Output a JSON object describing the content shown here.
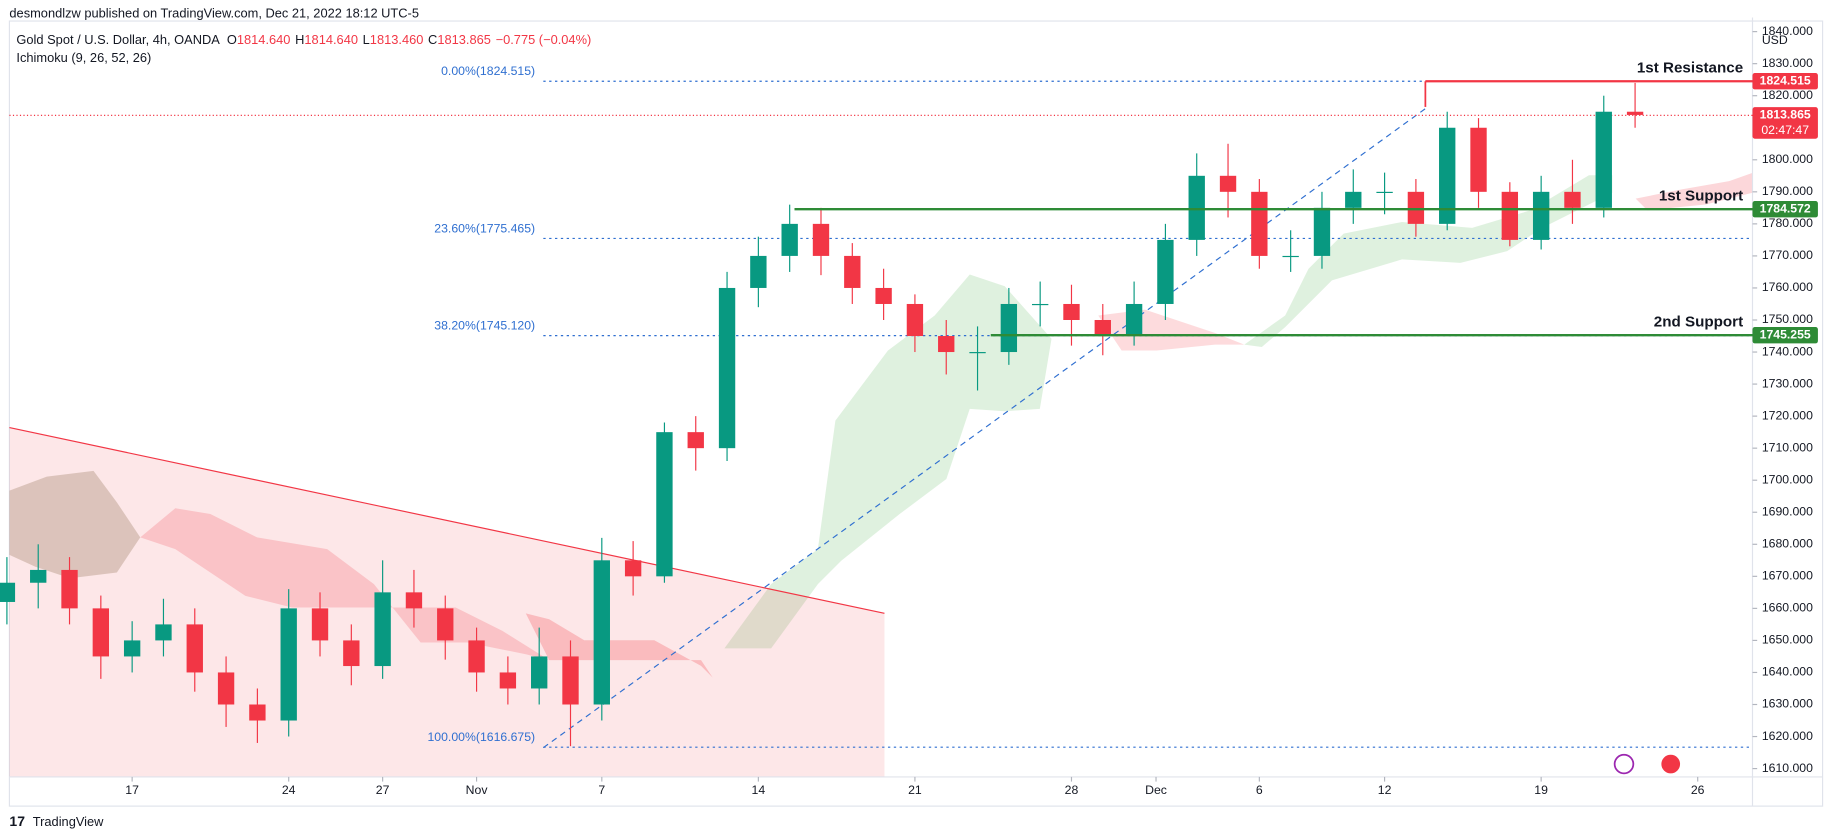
{
  "header": {
    "published": "desmondlzw published on TradingView.com, Dec 21, 2022 18:12 UTC-5",
    "symbol": "Gold Spot / U.S. Dollar, 4h, OANDA",
    "ohlc": [
      [
        "O",
        "1814.640"
      ],
      [
        "H",
        "1814.640"
      ],
      [
        "L",
        "1813.460"
      ],
      [
        "C",
        "1813.865"
      ]
    ],
    "change": "−0.775 (−0.04%)",
    "indicator": "Ichimoku (9, 26, 52, 26)",
    "currency": "USD"
  },
  "footer": {
    "brand": "TradingView"
  },
  "chart_data": {
    "type": "candlestick",
    "x": [
      -4,
      -3,
      -2,
      -1,
      0,
      1,
      2,
      3,
      4,
      5,
      6,
      7,
      8,
      9,
      10,
      11,
      12,
      13,
      14,
      15,
      16,
      17,
      18,
      19,
      20,
      21,
      22,
      23,
      24,
      25,
      26,
      27,
      28,
      29,
      30,
      31,
      32,
      33,
      34,
      35,
      36,
      37,
      38,
      39,
      40,
      41,
      42,
      43,
      44,
      45,
      46,
      47,
      48
    ],
    "open": [
      1662,
      1668,
      1672,
      1660,
      1645,
      1650,
      1655,
      1640,
      1630,
      1625,
      1660,
      1650,
      1642,
      1665,
      1660,
      1650,
      1640,
      1635,
      1645,
      1630,
      1675,
      1670,
      1715,
      1710,
      1760,
      1770,
      1780,
      1770,
      1760,
      1755,
      1745,
      1740,
      1740,
      1755,
      1755,
      1750,
      1745,
      1755,
      1775,
      1795,
      1790,
      1770,
      1770,
      1785,
      1790,
      1790,
      1780,
      1810,
      1790,
      1775,
      1790,
      1785,
      1815
    ],
    "high": [
      1676,
      1680,
      1676,
      1664,
      1656,
      1663,
      1660,
      1645,
      1635,
      1666,
      1665,
      1655,
      1675,
      1672,
      1664,
      1654,
      1645,
      1654,
      1650,
      1682,
      1681,
      1718,
      1720,
      1765,
      1776,
      1786,
      1785,
      1774,
      1766,
      1758,
      1750,
      1748,
      1760,
      1762,
      1761,
      1755,
      1762,
      1780,
      1802,
      1805,
      1794,
      1778,
      1790,
      1797,
      1796,
      1794,
      1815,
      1813,
      1793,
      1795,
      1800,
      1820,
      1824
    ],
    "low": [
      1655,
      1660,
      1655,
      1638,
      1640,
      1645,
      1634,
      1623,
      1618,
      1620,
      1645,
      1636,
      1638,
      1654,
      1644,
      1634,
      1630,
      1630,
      1617,
      1625,
      1664,
      1668,
      1703,
      1706,
      1754,
      1765,
      1764,
      1755,
      1750,
      1740,
      1733,
      1728,
      1736,
      1748,
      1742,
      1739,
      1742,
      1750,
      1770,
      1782,
      1766,
      1765,
      1766,
      1780,
      1783,
      1776,
      1778,
      1785,
      1773,
      1772,
      1780,
      1782,
      1810
    ],
    "close": [
      1668,
      1672,
      1660,
      1645,
      1650,
      1655,
      1640,
      1630,
      1625,
      1660,
      1650,
      1642,
      1665,
      1660,
      1650,
      1640,
      1635,
      1645,
      1630,
      1675,
      1670,
      1715,
      1710,
      1760,
      1770,
      1780,
      1770,
      1760,
      1755,
      1745,
      1740,
      1740,
      1755,
      1755,
      1750,
      1745,
      1755,
      1775,
      1795,
      1790,
      1770,
      1770,
      1785,
      1790,
      1790,
      1780,
      1810,
      1790,
      1775,
      1790,
      1785,
      1815,
      1814
    ],
    "up_color": "#089981",
    "down_color": "#f23645",
    "xlim": [
      -3.92,
      51.75
    ],
    "xticks": [
      {
        "value": 0,
        "label": "17"
      },
      {
        "value": 5,
        "label": "24"
      },
      {
        "value": 8,
        "label": "27"
      },
      {
        "value": 11,
        "label": "Nov"
      },
      {
        "value": 15,
        "label": "7"
      },
      {
        "value": 20,
        "label": "14"
      },
      {
        "value": 25,
        "label": "21"
      },
      {
        "value": 30,
        "label": "28"
      },
      {
        "value": 32.7,
        "label": "Dec"
      },
      {
        "value": 36,
        "label": "6"
      },
      {
        "value": 40,
        "label": "12"
      },
      {
        "value": 45,
        "label": "19"
      },
      {
        "value": 50,
        "label": "26"
      }
    ],
    "ylim": [
      1607.4,
      1844.4
    ],
    "yticks": [
      {
        "value": 1610,
        "label": "1610.000"
      },
      {
        "value": 1620,
        "label": "1620.000"
      },
      {
        "value": 1630,
        "label": "1630.000"
      },
      {
        "value": 1640,
        "label": "1640.000"
      },
      {
        "value": 1650,
        "label": "1650.000"
      },
      {
        "value": 1660,
        "label": "1660.000"
      },
      {
        "value": 1670,
        "label": "1670.000"
      },
      {
        "value": 1680,
        "label": "1680.000"
      },
      {
        "value": 1690,
        "label": "1690.000"
      },
      {
        "value": 1700,
        "label": "1700.000"
      },
      {
        "value": 1710,
        "label": "1710.000"
      },
      {
        "value": 1720,
        "label": "1720.000"
      },
      {
        "value": 1730,
        "label": "1730.000"
      },
      {
        "value": 1740,
        "label": "1740.000"
      },
      {
        "value": 1750,
        "label": "1750.000"
      },
      {
        "value": 1760,
        "label": "1760.000"
      },
      {
        "value": 1770,
        "label": "1770.000"
      },
      {
        "value": 1780,
        "label": "1780.000"
      },
      {
        "value": 1790,
        "label": "1790.000"
      },
      {
        "value": 1800,
        "label": "1800.000"
      },
      {
        "value": 1810,
        "label": "1810.000"
      },
      {
        "value": 1820,
        "label": "1820.000"
      },
      {
        "value": 1830,
        "label": "1830.000"
      },
      {
        "value": 1840,
        "label": "1840.000"
      }
    ],
    "levels": [
      {
        "name": "1st Resistance",
        "value": 1824.515,
        "color": "#f23645"
      },
      {
        "name": "1st Support",
        "value": 1784.572,
        "color": "#2e8b36"
      },
      {
        "name": "2nd Support",
        "value": 1745.255,
        "color": "#2e8b36"
      }
    ],
    "fibonacci": [
      {
        "label": "0.00%(1824.515)",
        "value": 1824.515
      },
      {
        "label": "23.60%(1775.465)",
        "value": 1775.465
      },
      {
        "label": "38.20%(1745.120)",
        "value": 1745.12
      },
      {
        "label": "100.00%(1616.675)",
        "value": 1616.675
      }
    ],
    "fib_color": "#2f6fd0",
    "last_price": {
      "value": 1813.865,
      "countdown": "02:47:47",
      "color": "#f23645"
    }
  }
}
